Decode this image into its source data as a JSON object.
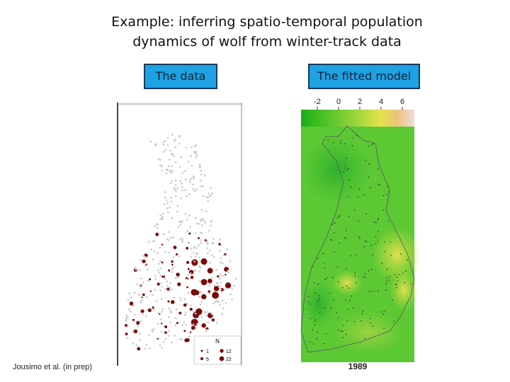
{
  "title": {
    "line1": "Example: inferring spatio-temporal population",
    "line2": "dynamics of wolf from winter-track data"
  },
  "tabs": {
    "data": "The data",
    "model": "The fitted model"
  },
  "data_map": {
    "legend_title": "N",
    "legend_items": [
      1,
      5,
      12,
      22
    ]
  },
  "model_map": {
    "colorbar_ticks": [
      -2,
      0,
      2,
      4,
      6
    ],
    "year": "1989"
  },
  "credit": "Jousimo et al. (in prep)"
}
